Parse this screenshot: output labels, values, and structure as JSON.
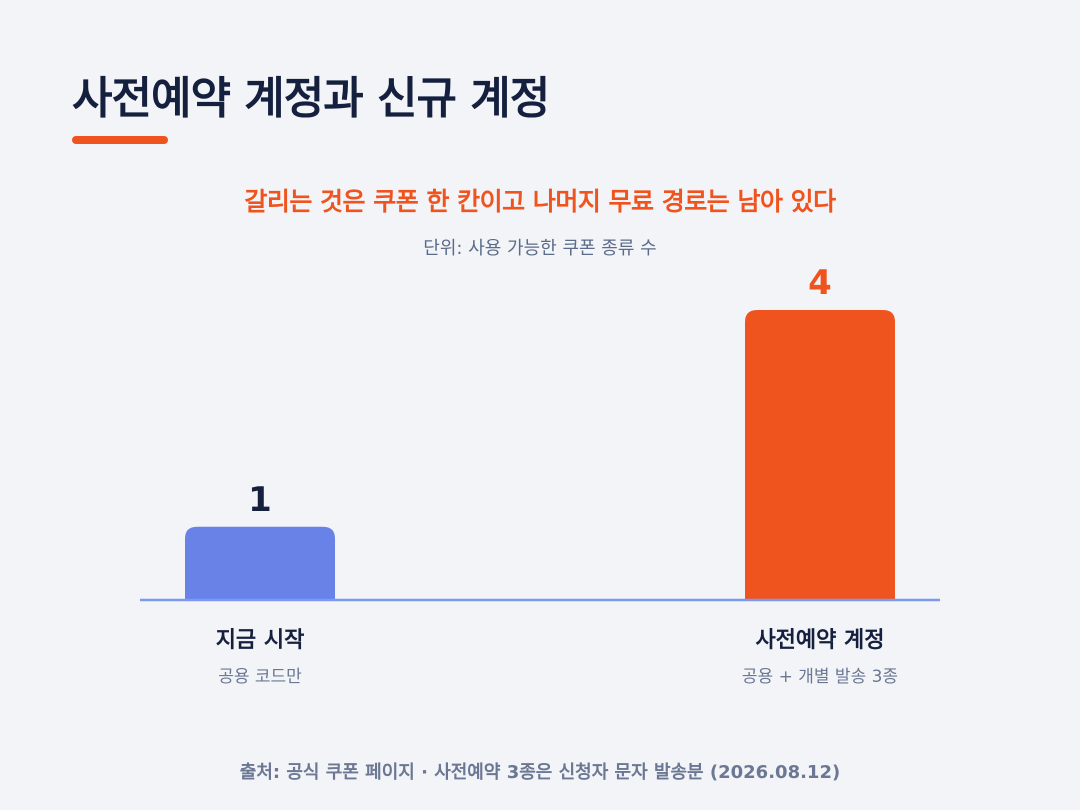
{
  "title": "사전예약 계정과 신규 계정",
  "subtitle": "갈리는 것은 쿠폰 한 칸이고 나머지 무료 경로는 남아 있다",
  "unit": "단위: 사용 가능한 쿠폰 종류 수",
  "source": "출처: 공식 쿠폰 페이지 · 사전예약 3종은 신청자 문자 발송분 (2026.08.12)",
  "colors": {
    "accent": "#f0541e",
    "bar_now": "#6882e8",
    "bar_preorder": "#f0541e",
    "baseline": "#7d9af0",
    "title": "#15203f"
  },
  "chart_data": {
    "type": "bar",
    "categories": [
      "지금 시작",
      "사전예약 계정"
    ],
    "category_subtitles": [
      "공용 코드만",
      "공용 + 개별 발송 3종"
    ],
    "values": [
      1,
      4
    ],
    "value_labels": [
      "1",
      "4"
    ],
    "title": "사전예약 계정과 신규 계정",
    "subtitle": "갈리는 것은 쿠폰 한 칸이고 나머지 무료 경로는 남아 있다",
    "ylabel": "",
    "xlabel": "",
    "ylim": [
      0,
      4
    ],
    "grid": false,
    "legend": "none"
  }
}
